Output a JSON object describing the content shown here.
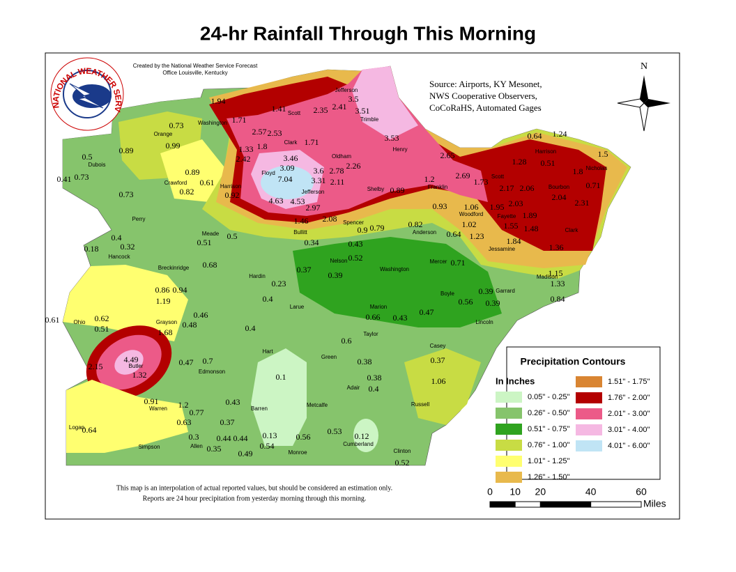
{
  "title": "24-hr Rainfall Through This Morning",
  "credit": [
    "Created by the National Weather Service Forecast",
    "Office Louisville, Kentucky"
  ],
  "logo_text": "NATIONAL WEATHER SERVICE",
  "source": [
    "Source: Airports, KY Mesonet,",
    "NWS Cooperative Observers,",
    "CoCoRaHS, Automated Gages"
  ],
  "north": "N",
  "note": [
    "This map is an interpolation of actual reported values, but should be considered an estimation only.",
    "Reports are 24 hour precipitation from yesterday morning through this morning."
  ],
  "legend": {
    "title": "Precipitation Contours",
    "subtitle": "In Inches",
    "entries": [
      {
        "label": "0.05\" - 0.25\"",
        "color": "#ccf5c4"
      },
      {
        "label": "0.26\" - 0.50\"",
        "color": "#86c46c"
      },
      {
        "label": "0.51\" - 0.75\"",
        "color": "#2fa31f"
      },
      {
        "label": "0.76\" - 1.00\"",
        "color": "#c8dc44"
      },
      {
        "label": "1.01\" - 1.25\"",
        "color": "#ffff70"
      },
      {
        "label": "1.26\" - 1.50\"",
        "color": "#e8b94c"
      },
      {
        "label": "1.51\" - 1.75\"",
        "color": "#d98532"
      },
      {
        "label": "1.76\" - 2.00\"",
        "color": "#b30000"
      },
      {
        "label": "2.01\" - 3.00\"",
        "color": "#ec5a88"
      },
      {
        "label": "3.01\" - 4.00\"",
        "color": "#f5b8e2"
      },
      {
        "label": "4.01\" - 6.00\"",
        "color": "#c0e4f5"
      }
    ]
  },
  "scale": {
    "ticks": [
      0,
      10,
      20,
      40,
      60
    ],
    "unit": "Miles"
  },
  "counties": [
    "Jefferson",
    "Washington",
    "Scott",
    "Trimble",
    "Orange",
    "Clark",
    "Henry",
    "Oldham",
    "Harrison",
    "Nicholas",
    "Dubois",
    "Floyd",
    "Crawford",
    "Harrison",
    "Jefferson",
    "Shelby",
    "Franklin",
    "Scott",
    "Bourbon",
    "Woodford",
    "Fayette",
    "Clark",
    "Perry",
    "Meade",
    "Bullitt",
    "Spencer",
    "Anderson",
    "Jessamine",
    "Hancock",
    "Nelson",
    "Washington",
    "Mercer",
    "Breckinridge",
    "Hardin",
    "Madison",
    "Boyle",
    "Garrard",
    "Larue",
    "Marion",
    "Lincoln",
    "Ohio",
    "Grayson",
    "Taylor",
    "Casey",
    "Hart",
    "Green",
    "Butler",
    "Edmonson",
    "Adair",
    "Russell",
    "Barren",
    "Metcalfe",
    "Warren",
    "Logan",
    "Simpson",
    "Allen",
    "Cumberland",
    "Clinton",
    "Monroe"
  ],
  "readings": [
    1.94,
    1.41,
    2.35,
    2.41,
    3.5,
    3.51,
    1.71,
    2.57,
    2.53,
    0.73,
    0.99,
    0.89,
    0.5,
    0.41,
    0.73,
    1.33,
    1.8,
    2.42,
    1.71,
    3.46,
    3.09,
    7.04,
    3.6,
    2.78,
    2.26,
    3.31,
    2.11,
    4.63,
    4.53,
    2.97,
    0.89,
    0.61,
    0.82,
    0.92,
    0.73,
    3.53,
    2.65,
    0.89,
    1.2,
    2.69,
    1.73,
    0.64,
    1.24,
    1.28,
    0.51,
    1.5,
    1.8,
    2.17,
    2.06,
    2.04,
    0.71,
    2.31,
    0.93,
    1.06,
    1.95,
    2.03,
    1.89,
    1.02,
    1.55,
    1.48,
    1.23,
    1.84,
    1.36,
    0.82,
    0.64,
    1.46,
    2.08,
    0.9,
    0.79,
    0.4,
    0.32,
    0.18,
    0.51,
    0.5,
    0.34,
    0.43,
    0.52,
    0.71,
    0.68,
    0.37,
    0.39,
    0.23,
    1.15,
    1.33,
    0.84,
    0.86,
    0.94,
    1.19,
    0.4,
    0.39,
    0.56,
    0.39,
    0.47,
    0.66,
    0.43,
    0.61,
    0.62,
    0.51,
    0.46,
    0.48,
    1.68,
    0.4,
    0.6,
    4.49,
    1.32,
    2.15,
    0.47,
    0.7,
    0.38,
    0.37,
    0.1,
    0.38,
    0.4,
    1.06,
    0.91,
    1.2,
    0.77,
    0.43,
    0.63,
    0.37,
    0.64,
    0.3,
    0.44,
    0.44,
    0.13,
    0.56,
    0.53,
    0.12,
    0.35,
    0.54,
    0.49,
    0.52
  ]
}
